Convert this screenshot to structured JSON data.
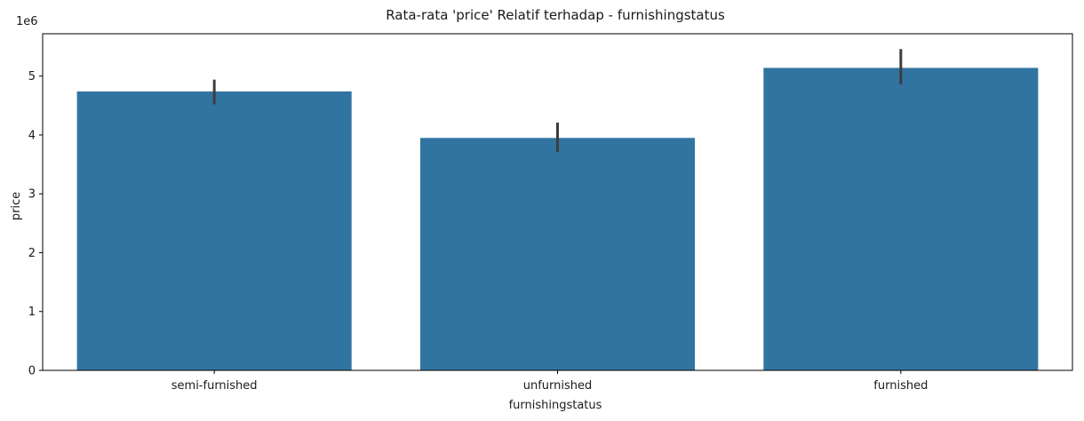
{
  "chart_data": {
    "type": "bar",
    "title": "Rata-rata 'price' Relatif terhadap - furnishingstatus",
    "xlabel": "furnishingstatus",
    "ylabel": "price",
    "y_multiplier_label": "1e6",
    "categories": [
      "semi-furnished",
      "unfurnished",
      "furnished"
    ],
    "values": [
      4.74,
      3.95,
      5.14
    ],
    "error_low": [
      4.52,
      3.71,
      4.86
    ],
    "error_high": [
      4.94,
      4.21,
      5.46
    ],
    "ylim": [
      0,
      5.72
    ],
    "yticks": [
      0,
      1,
      2,
      3,
      4,
      5
    ],
    "ytick_labels": [
      "0",
      "1",
      "2",
      "3",
      "4",
      "5"
    ],
    "grid": false,
    "colors": {
      "bar": "#3274a1",
      "error": "#3d3d3d",
      "axis": "#000000"
    }
  }
}
